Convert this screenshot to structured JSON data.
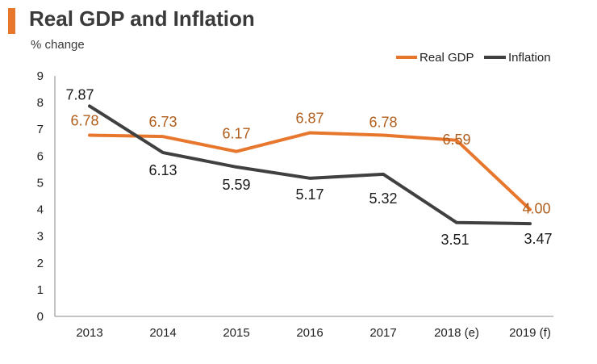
{
  "header": {
    "title": "Real GDP and Inflation",
    "subtitle": "% change"
  },
  "colors": {
    "accent": "#e8772e",
    "gdp_line": "#e8772e",
    "gdp_label": "#b15e1c",
    "inflation_line": "#404040",
    "inflation_label": "#1a1a1a",
    "axis": "#888888",
    "text": "#222222"
  },
  "chart_data": {
    "type": "line",
    "title": "Real GDP and Inflation",
    "ylabel": "% change",
    "xlabel": "",
    "categories": [
      "2013",
      "2014",
      "2015",
      "2016",
      "2017",
      "2018 (e)",
      "2019 (f)"
    ],
    "ylim": [
      0,
      9
    ],
    "yticks": [
      "0",
      "1",
      "2",
      "3",
      "4",
      "5",
      "6",
      "7",
      "8",
      "9"
    ],
    "legend_position": "top-right",
    "grid": false,
    "series": [
      {
        "key": "gdp",
        "name": "Real GDP",
        "values": [
          6.78,
          6.73,
          6.17,
          6.87,
          6.78,
          6.59,
          4.0
        ],
        "labels": [
          "6.78",
          "6.73",
          "6.17",
          "6.87",
          "6.78",
          "6.59",
          "4.00"
        ]
      },
      {
        "key": "inflation",
        "name": "Inflation",
        "values": [
          7.87,
          6.13,
          5.59,
          5.17,
          5.32,
          3.51,
          3.47
        ],
        "labels": [
          "7.87",
          "6.13",
          "5.59",
          "5.17",
          "5.32",
          "3.51",
          "3.47"
        ]
      }
    ]
  }
}
